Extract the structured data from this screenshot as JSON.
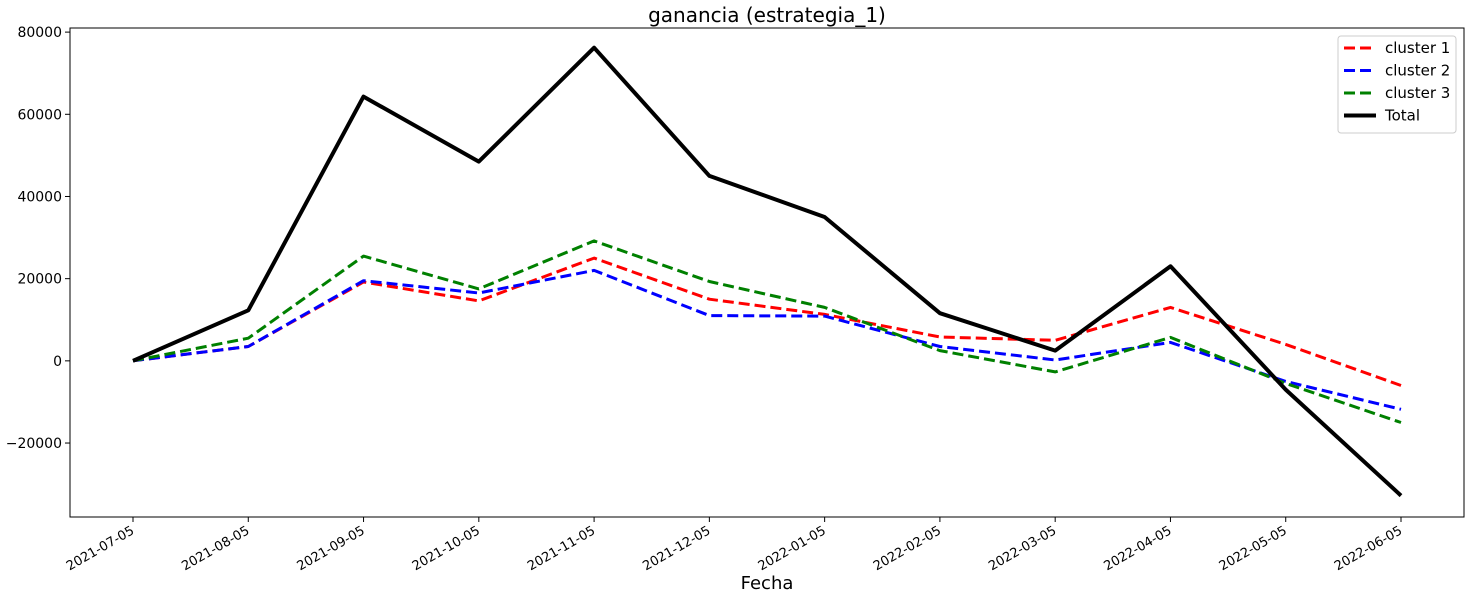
{
  "chart_data": {
    "type": "line",
    "title": "ganancia (estrategia_1)",
    "xlabel": "Fecha",
    "ylabel": "",
    "x": [
      "2021-07-05",
      "2021-08-05",
      "2021-09-05",
      "2021-10-05",
      "2021-11-05",
      "2021-12-05",
      "2022-01-05",
      "2022-02-05",
      "2022-03-05",
      "2022-04-05",
      "2022-05-05",
      "2022-06-05"
    ],
    "ylim": [
      -38000,
      81000
    ],
    "yticks": [
      -20000,
      0,
      20000,
      40000,
      60000,
      80000
    ],
    "yticklabels": [
      "−20000",
      "0",
      "20000",
      "40000",
      "60000",
      "80000"
    ],
    "grid": false,
    "legend_position": "top-right",
    "series": [
      {
        "name": "cluster 1",
        "color": "#ff0000",
        "style": "dashed",
        "values": [
          0,
          3500,
          19200,
          14600,
          25000,
          15000,
          11300,
          5800,
          5000,
          13000,
          4000,
          -6000
        ]
      },
      {
        "name": "cluster 2",
        "color": "#0000ff",
        "style": "dashed",
        "values": [
          0,
          3500,
          19500,
          16500,
          22000,
          11000,
          10900,
          3500,
          200,
          4500,
          -5000,
          -11800
        ]
      },
      {
        "name": "cluster 3",
        "color": "#008000",
        "style": "dashed",
        "values": [
          0,
          5500,
          25500,
          17500,
          29200,
          19300,
          13000,
          2500,
          -2700,
          5700,
          -5500,
          -15000
        ]
      },
      {
        "name": "Total",
        "color": "#000000",
        "style": "solid",
        "values": [
          0,
          12300,
          64300,
          48500,
          76200,
          45000,
          35000,
          11600,
          2500,
          23000,
          -7000,
          -32800
        ]
      }
    ]
  }
}
